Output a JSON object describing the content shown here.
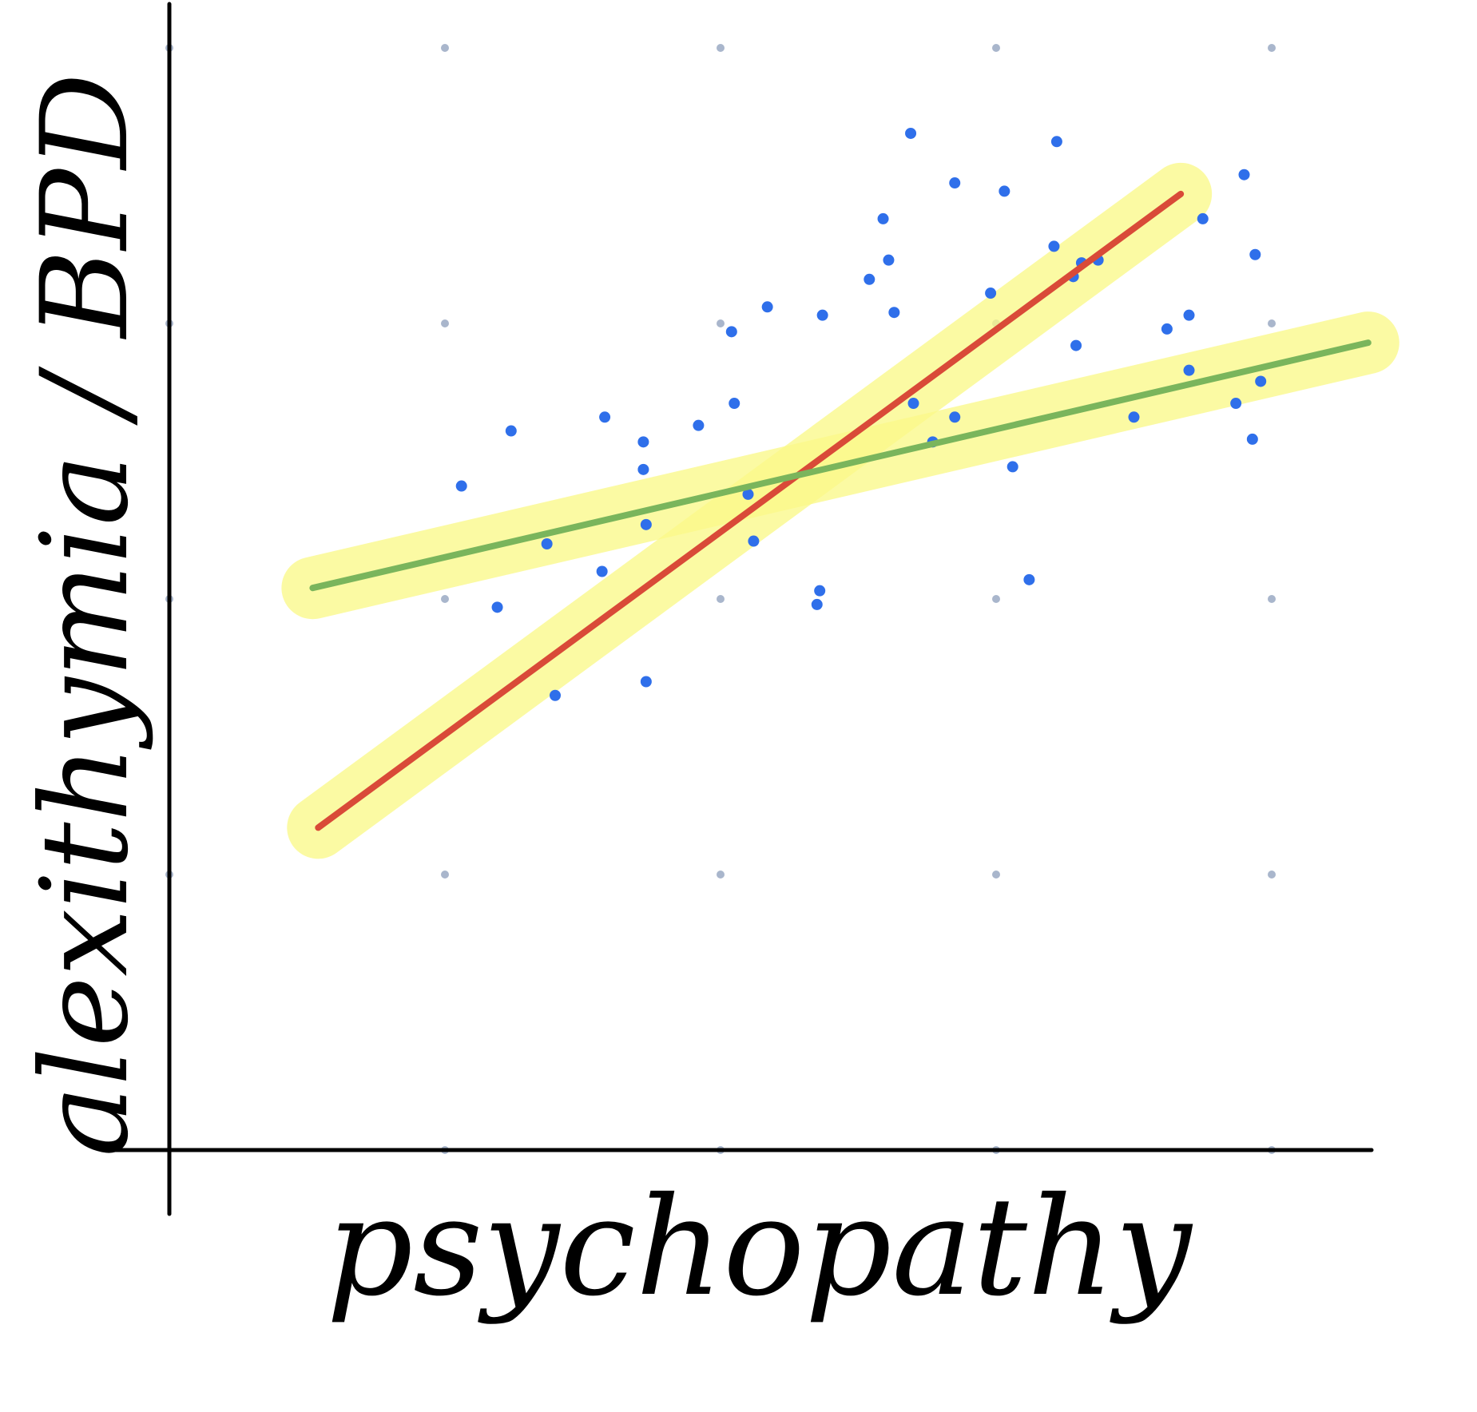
{
  "chart_data": {
    "type": "scatter",
    "title": "",
    "xlabel": "psychopathy",
    "ylabel": "alexithymia / BPD",
    "xlim": [
      0,
      4.5
    ],
    "ylim": [
      0,
      4
    ],
    "grid": "dots",
    "points": [
      {
        "x": 1.06,
        "y": 2.41
      },
      {
        "x": 1.24,
        "y": 2.61
      },
      {
        "x": 1.19,
        "y": 1.97
      },
      {
        "x": 1.37,
        "y": 2.2
      },
      {
        "x": 1.4,
        "y": 1.65
      },
      {
        "x": 1.57,
        "y": 2.1
      },
      {
        "x": 1.58,
        "y": 2.66
      },
      {
        "x": 1.72,
        "y": 2.57
      },
      {
        "x": 1.72,
        "y": 2.47
      },
      {
        "x": 1.73,
        "y": 2.27
      },
      {
        "x": 1.73,
        "y": 1.7
      },
      {
        "x": 1.92,
        "y": 2.63
      },
      {
        "x": 2.04,
        "y": 2.97
      },
      {
        "x": 2.05,
        "y": 2.71
      },
      {
        "x": 2.17,
        "y": 3.06
      },
      {
        "x": 2.1,
        "y": 2.38
      },
      {
        "x": 2.12,
        "y": 2.21
      },
      {
        "x": 2.35,
        "y": 1.98
      },
      {
        "x": 2.36,
        "y": 2.03
      },
      {
        "x": 2.37,
        "y": 3.03
      },
      {
        "x": 2.54,
        "y": 3.16
      },
      {
        "x": 2.59,
        "y": 3.38
      },
      {
        "x": 2.61,
        "y": 3.23
      },
      {
        "x": 2.63,
        "y": 3.04
      },
      {
        "x": 2.69,
        "y": 3.69
      },
      {
        "x": 2.7,
        "y": 2.71
      },
      {
        "x": 2.77,
        "y": 2.57
      },
      {
        "x": 2.85,
        "y": 3.51
      },
      {
        "x": 2.85,
        "y": 2.66
      },
      {
        "x": 2.98,
        "y": 3.11
      },
      {
        "x": 3.03,
        "y": 3.48
      },
      {
        "x": 3.06,
        "y": 2.48
      },
      {
        "x": 3.12,
        "y": 2.07
      },
      {
        "x": 3.22,
        "y": 3.66
      },
      {
        "x": 3.21,
        "y": 3.28
      },
      {
        "x": 3.28,
        "y": 3.17
      },
      {
        "x": 3.29,
        "y": 2.92
      },
      {
        "x": 3.31,
        "y": 3.22
      },
      {
        "x": 3.37,
        "y": 3.23
      },
      {
        "x": 3.5,
        "y": 2.66
      },
      {
        "x": 3.62,
        "y": 2.98
      },
      {
        "x": 3.7,
        "y": 2.83
      },
      {
        "x": 3.7,
        "y": 3.03
      },
      {
        "x": 3.75,
        "y": 3.38
      },
      {
        "x": 3.87,
        "y": 2.71
      },
      {
        "x": 3.9,
        "y": 3.54
      },
      {
        "x": 3.93,
        "y": 2.58
      },
      {
        "x": 3.94,
        "y": 3.25
      },
      {
        "x": 3.96,
        "y": 2.79
      }
    ],
    "series": [
      {
        "type": "line",
        "color": "#d94a38",
        "x": [
          0.54,
          3.67
        ],
        "y": [
          1.17,
          3.47
        ]
      },
      {
        "type": "line",
        "color": "#7ab55c",
        "x": [
          0.52,
          4.35
        ],
        "y": [
          2.04,
          2.93
        ]
      }
    ],
    "colors": {
      "points": "#2f6fea",
      "highlight": "#fbf98a",
      "axes": "#000000",
      "grid_dots": "#a9b6cc"
    }
  }
}
